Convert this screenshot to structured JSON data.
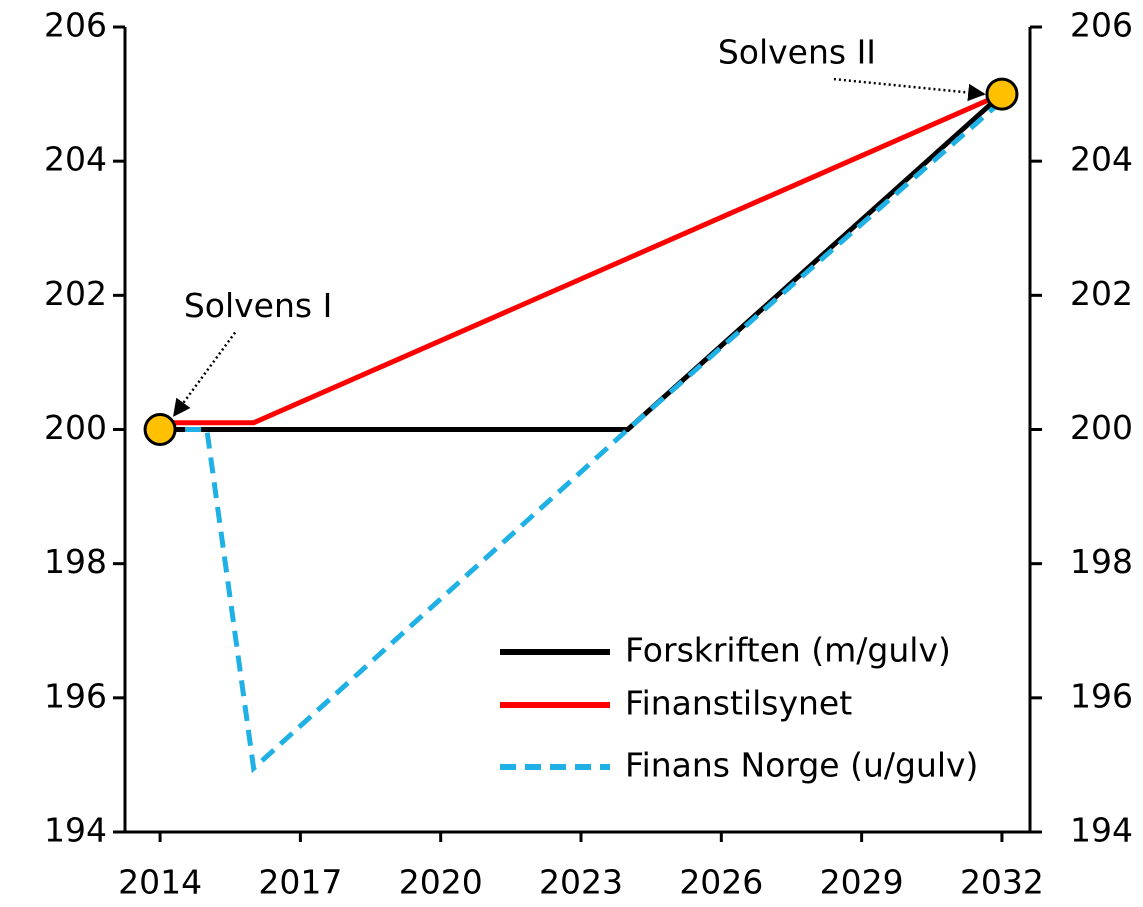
{
  "chart_data": {
    "type": "line",
    "xlim": [
      2013.25,
      2032.6
    ],
    "xticks": [
      2014,
      2017,
      2020,
      2023,
      2026,
      2029,
      2032
    ],
    "ylim": [
      194,
      206
    ],
    "yticks": [
      194,
      196,
      198,
      200,
      202,
      204,
      206
    ],
    "y2lim": [
      194,
      206
    ],
    "y2ticks": [
      194,
      196,
      198,
      200,
      202,
      204,
      206
    ],
    "legend": "lower right",
    "series": [
      {
        "name": "Forskriften (m/gulv)",
        "color": "#000000",
        "dash": false,
        "x": [
          2014,
          2024,
          2032
        ],
        "values": [
          200,
          200,
          205
        ]
      },
      {
        "name": "Finanstilsynet",
        "color": "#ff0000",
        "dash": false,
        "x": [
          2014,
          2016,
          2032
        ],
        "values": [
          200.1,
          200.1,
          205
        ]
      },
      {
        "name": "Finans Norge (u/gulv)",
        "color": "#1fb1e6",
        "dash": true,
        "x": [
          2014,
          2015,
          2016,
          2024,
          2032
        ],
        "values": [
          200,
          200,
          194.95,
          200,
          204.9
        ]
      }
    ],
    "annotations": [
      {
        "text": "Solvens I",
        "x": 2014,
        "y": 200,
        "color": "#ffc000"
      },
      {
        "text": "Solvens II",
        "x": 2032,
        "y": 205,
        "color": "#ffc000"
      }
    ]
  }
}
